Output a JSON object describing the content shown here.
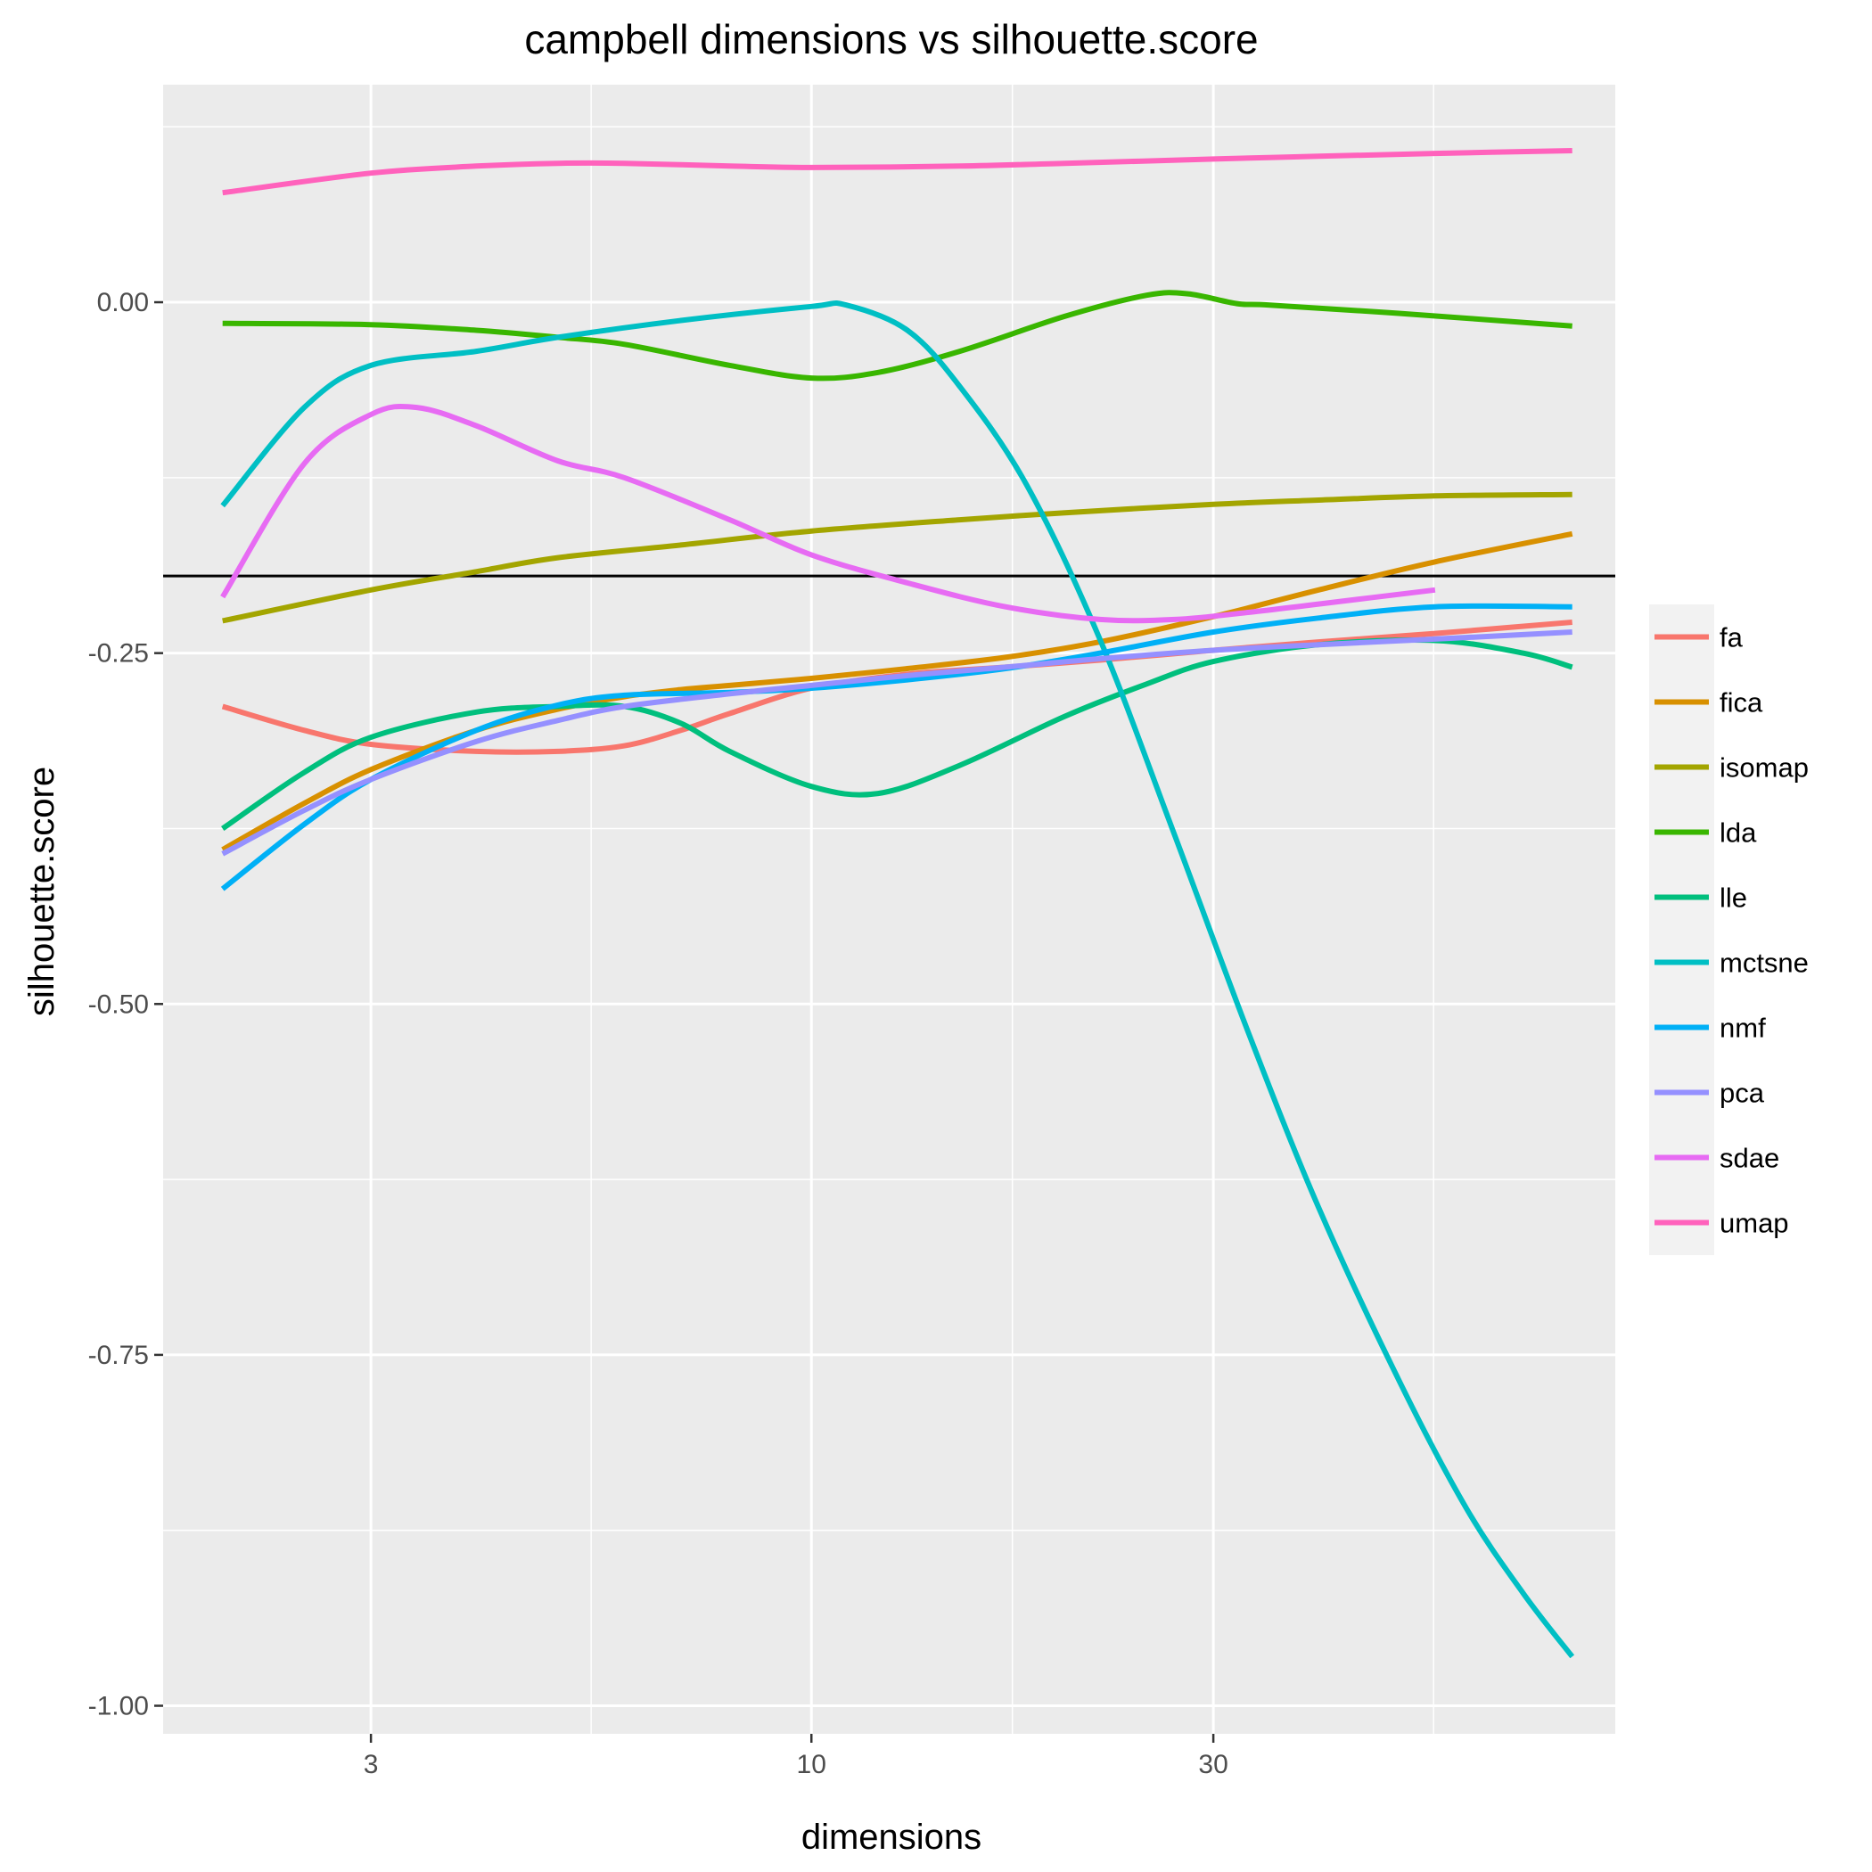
{
  "chart_data": {
    "type": "line",
    "title": "campbell dimensions vs silhouette.score",
    "xlabel": "dimensions",
    "ylabel": "silhouette.score",
    "x_scale": "log10",
    "xlim": [
      1.7,
      90
    ],
    "ylim": [
      -1.02,
      0.155
    ],
    "x_ticks": [
      {
        "value": 3,
        "label": "3"
      },
      {
        "value": 10,
        "label": "10"
      },
      {
        "value": 30,
        "label": "30"
      }
    ],
    "x_minor_ticks": [
      5.477,
      17.32,
      54.77
    ],
    "y_ticks": [
      {
        "value": 0,
        "label": "0.00"
      },
      {
        "value": -0.25,
        "label": "-0.25"
      },
      {
        "value": -0.5,
        "label": "-0.50"
      },
      {
        "value": -0.75,
        "label": "-0.75"
      },
      {
        "value": -1,
        "label": "-1.00"
      }
    ],
    "y_minor_ticks": [
      0.125,
      -0.125,
      -0.375,
      -0.625,
      -0.875
    ],
    "grid": true,
    "background": "#ebebeb",
    "reference_line": {
      "y": -0.195,
      "color": "#000000"
    },
    "legend_position": "right",
    "series": [
      {
        "name": "fa",
        "color": "#F8766D",
        "points": [
          [
            2,
            -0.288
          ],
          [
            2.5,
            -0.305
          ],
          [
            3,
            -0.315
          ],
          [
            4,
            -0.32
          ],
          [
            5,
            -0.32
          ],
          [
            6,
            -0.316
          ],
          [
            7,
            -0.305
          ],
          [
            8,
            -0.293
          ],
          [
            10,
            -0.275
          ],
          [
            13,
            -0.265
          ],
          [
            17,
            -0.26
          ],
          [
            22,
            -0.255
          ],
          [
            30,
            -0.248
          ],
          [
            40,
            -0.242
          ],
          [
            55,
            -0.236
          ],
          [
            80,
            -0.228
          ]
        ]
      },
      {
        "name": "fica",
        "color": "#D89000",
        "points": [
          [
            2,
            -0.39
          ],
          [
            2.5,
            -0.357
          ],
          [
            3,
            -0.333
          ],
          [
            4,
            -0.305
          ],
          [
            5,
            -0.29
          ],
          [
            6,
            -0.281
          ],
          [
            7,
            -0.276
          ],
          [
            8,
            -0.273
          ],
          [
            10,
            -0.268
          ],
          [
            13,
            -0.261
          ],
          [
            17,
            -0.253
          ],
          [
            22,
            -0.242
          ],
          [
            30,
            -0.224
          ],
          [
            40,
            -0.205
          ],
          [
            55,
            -0.185
          ],
          [
            80,
            -0.165
          ]
        ]
      },
      {
        "name": "isomap",
        "color": "#A3A500",
        "points": [
          [
            2,
            -0.227
          ],
          [
            3,
            -0.205
          ],
          [
            4,
            -0.192
          ],
          [
            5,
            -0.182
          ],
          [
            7,
            -0.173
          ],
          [
            10,
            -0.163
          ],
          [
            15,
            -0.155
          ],
          [
            20,
            -0.15
          ],
          [
            30,
            -0.144
          ],
          [
            40,
            -0.141
          ],
          [
            55,
            -0.138
          ],
          [
            80,
            -0.137
          ]
        ]
      },
      {
        "name": "lda",
        "color": "#39B600",
        "points": [
          [
            2,
            -0.015
          ],
          [
            3,
            -0.016
          ],
          [
            4,
            -0.02
          ],
          [
            5,
            -0.025
          ],
          [
            6,
            -0.03
          ],
          [
            8,
            -0.045
          ],
          [
            10,
            -0.054
          ],
          [
            12,
            -0.05
          ],
          [
            15,
            -0.035
          ],
          [
            20,
            -0.01
          ],
          [
            25,
            0.005
          ],
          [
            28,
            0.006
          ],
          [
            32,
            -0.001
          ],
          [
            35,
            -0.002
          ],
          [
            50,
            -0.008
          ],
          [
            80,
            -0.017
          ]
        ]
      },
      {
        "name": "lle",
        "color": "#00BF7D",
        "points": [
          [
            2,
            -0.375
          ],
          [
            2.5,
            -0.335
          ],
          [
            3,
            -0.31
          ],
          [
            4,
            -0.292
          ],
          [
            5,
            -0.288
          ],
          [
            6,
            -0.288
          ],
          [
            7,
            -0.3
          ],
          [
            8,
            -0.32
          ],
          [
            10,
            -0.345
          ],
          [
            12,
            -0.35
          ],
          [
            15,
            -0.33
          ],
          [
            20,
            -0.295
          ],
          [
            25,
            -0.272
          ],
          [
            30,
            -0.256
          ],
          [
            40,
            -0.244
          ],
          [
            55,
            -0.241
          ],
          [
            70,
            -0.25
          ],
          [
            80,
            -0.26
          ]
        ]
      },
      {
        "name": "mctsne",
        "color": "#00BFC4",
        "points": [
          [
            2,
            -0.145
          ],
          [
            2.5,
            -0.075
          ],
          [
            3,
            -0.045
          ],
          [
            4,
            -0.035
          ],
          [
            5,
            -0.025
          ],
          [
            7,
            -0.013
          ],
          [
            10,
            -0.003
          ],
          [
            11,
            -0.002
          ],
          [
            13,
            -0.02
          ],
          [
            15,
            -0.06
          ],
          [
            18,
            -0.13
          ],
          [
            22,
            -0.24
          ],
          [
            27,
            -0.38
          ],
          [
            33,
            -0.52
          ],
          [
            40,
            -0.645
          ],
          [
            50,
            -0.77
          ],
          [
            60,
            -0.86
          ],
          [
            70,
            -0.92
          ],
          [
            80,
            -0.965
          ]
        ]
      },
      {
        "name": "nmf",
        "color": "#00B0F6",
        "points": [
          [
            2,
            -0.418
          ],
          [
            2.5,
            -0.372
          ],
          [
            3,
            -0.34
          ],
          [
            4,
            -0.305
          ],
          [
            5,
            -0.287
          ],
          [
            6,
            -0.28
          ],
          [
            8,
            -0.278
          ],
          [
            10,
            -0.275
          ],
          [
            13,
            -0.269
          ],
          [
            17,
            -0.261
          ],
          [
            22,
            -0.25
          ],
          [
            30,
            -0.235
          ],
          [
            40,
            -0.225
          ],
          [
            55,
            -0.217
          ],
          [
            80,
            -0.217
          ]
        ]
      },
      {
        "name": "pca",
        "color": "#9590FF",
        "points": [
          [
            2,
            -0.393
          ],
          [
            2.5,
            -0.362
          ],
          [
            3,
            -0.34
          ],
          [
            4,
            -0.313
          ],
          [
            5,
            -0.298
          ],
          [
            6,
            -0.288
          ],
          [
            8,
            -0.279
          ],
          [
            10,
            -0.273
          ],
          [
            13,
            -0.266
          ],
          [
            17,
            -0.26
          ],
          [
            22,
            -0.254
          ],
          [
            30,
            -0.248
          ],
          [
            40,
            -0.244
          ],
          [
            55,
            -0.24
          ],
          [
            80,
            -0.235
          ]
        ]
      },
      {
        "name": "sdae",
        "color": "#E76BF3",
        "points": [
          [
            2,
            -0.21
          ],
          [
            2.5,
            -0.115
          ],
          [
            3,
            -0.08
          ],
          [
            3.4,
            -0.075
          ],
          [
            4,
            -0.088
          ],
          [
            5,
            -0.113
          ],
          [
            6,
            -0.125
          ],
          [
            8,
            -0.155
          ],
          [
            10,
            -0.18
          ],
          [
            13,
            -0.2
          ],
          [
            17,
            -0.217
          ],
          [
            22,
            -0.226
          ],
          [
            27,
            -0.226
          ],
          [
            33,
            -0.221
          ],
          [
            40,
            -0.215
          ],
          [
            55,
            -0.205
          ]
        ]
      },
      {
        "name": "umap",
        "color": "#FF62BC",
        "points": [
          [
            2,
            0.078
          ],
          [
            3,
            0.092
          ],
          [
            4,
            0.097
          ],
          [
            5,
            0.099
          ],
          [
            6,
            0.099
          ],
          [
            8,
            0.097
          ],
          [
            10,
            0.096
          ],
          [
            15,
            0.097
          ],
          [
            20,
            0.099
          ],
          [
            30,
            0.102
          ],
          [
            40,
            0.104
          ],
          [
            55,
            0.106
          ],
          [
            80,
            0.108
          ]
        ]
      }
    ]
  }
}
